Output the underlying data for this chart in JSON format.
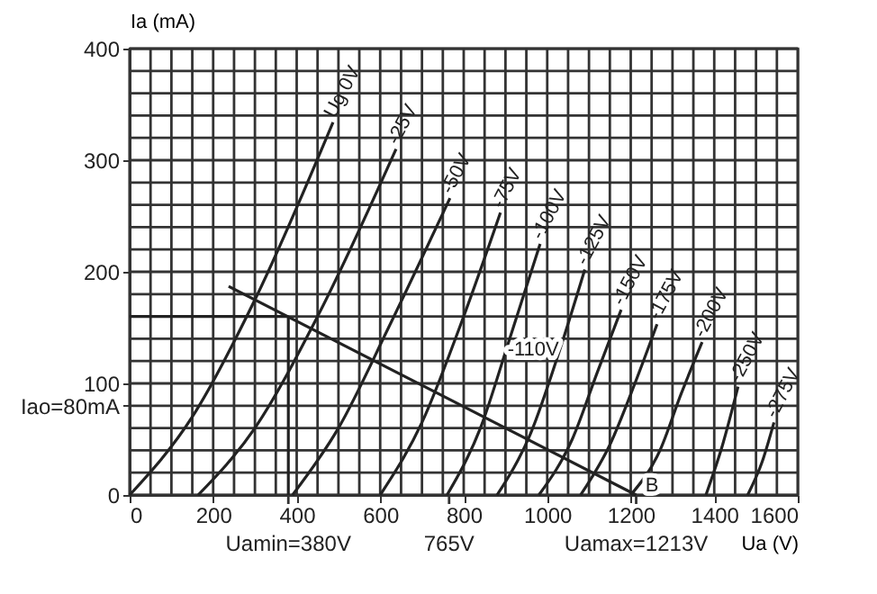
{
  "chart_data": {
    "type": "line",
    "xlabel": "Ua (V)",
    "ylabel": "Ia (mA)",
    "xlim": [
      0,
      1600
    ],
    "ylim": [
      0,
      400
    ],
    "xticks": [
      0,
      {
        "value": 50,
        "label": null
      },
      200,
      {
        "value": 100,
        "label": null
      },
      {
        "value": 150,
        "label": null
      },
      {
        "value": 250,
        "label": null
      },
      {
        "value": 300,
        "label": null
      },
      {
        "value": 350,
        "label": null
      },
      400,
      {
        "value": 450,
        "label": null
      },
      {
        "value": 500,
        "label": null
      },
      {
        "value": 550,
        "label": null
      },
      600,
      {
        "value": 650,
        "label": null
      },
      {
        "value": 700,
        "label": null
      },
      {
        "value": 750,
        "label": null
      },
      800,
      {
        "value": 850,
        "label": null
      },
      {
        "value": 900,
        "label": null
      },
      {
        "value": 950,
        "label": null
      },
      1000,
      {
        "value": 1050,
        "label": null
      },
      {
        "value": 1100,
        "label": null
      },
      {
        "value": 1150,
        "label": null
      },
      1200,
      {
        "value": 1250,
        "label": null
      },
      {
        "value": 1300,
        "label": null
      },
      {
        "value": 1350,
        "label": null
      },
      1400,
      {
        "value": 1450,
        "label": null
      },
      {
        "value": 1500,
        "label": null
      },
      {
        "value": 1550,
        "label": null
      },
      1600
    ],
    "yticks": [
      0,
      {
        "value": 20,
        "label": null
      },
      {
        "value": 40,
        "label": null
      },
      {
        "value": 60,
        "label": null
      },
      {
        "value": 80,
        "label": "Iao=80mA"
      },
      100,
      {
        "value": 120,
        "label": null
      },
      {
        "value": 140,
        "label": null
      },
      {
        "value": 160,
        "label": null
      },
      {
        "value": 180,
        "label": null
      },
      200,
      {
        "value": 220,
        "label": null
      },
      {
        "value": 240,
        "label": null
      },
      {
        "value": 260,
        "label": null
      },
      {
        "value": 280,
        "label": null
      },
      300,
      {
        "value": 320,
        "label": null
      },
      {
        "value": 340,
        "label": null
      },
      {
        "value": 360,
        "label": null
      },
      {
        "value": 380,
        "label": null
      },
      400
    ],
    "grid": true,
    "legend": false,
    "line_style": "solid",
    "marker": "none",
    "series": [
      {
        "name": "Ug 0V",
        "color": "#222222",
        "x": [
          0,
          150,
          300,
          487
        ],
        "values": [
          0,
          70,
          175,
          334
        ]
      },
      {
        "name": "-25V",
        "color": "#222222",
        "x": [
          164,
          300,
          450,
          638
        ],
        "values": [
          0,
          60,
          160,
          310
        ]
      },
      {
        "name": "-50V",
        "color": "#222222",
        "x": [
          390,
          500,
          620,
          767
        ],
        "values": [
          0,
          60,
          150,
          266
        ]
      },
      {
        "name": "-75V",
        "color": "#222222",
        "x": [
          600,
          700,
          790,
          888
        ],
        "values": [
          0,
          65,
          150,
          253
        ]
      },
      {
        "name": "-100V",
        "color": "#222222",
        "x": [
          760,
          840,
          910,
          983
        ],
        "values": [
          0,
          60,
          140,
          225
        ]
      },
      {
        "name": "-125V",
        "color": "#222222",
        "x": [
          880,
          960,
          1030,
          1090
        ],
        "values": [
          0,
          55,
          130,
          202
        ]
      },
      {
        "name": "-150V",
        "color": "#222222",
        "x": [
          980,
          1060,
          1120,
          1177
        ],
        "values": [
          0,
          50,
          110,
          166
        ]
      },
      {
        "name": "-175V",
        "color": "#222222",
        "x": [
          1080,
          1150,
          1210,
          1263
        ],
        "values": [
          0,
          45,
          100,
          153
        ]
      },
      {
        "name": "-200V",
        "color": "#222222",
        "x": [
          1200,
          1270,
          1320,
          1371
        ],
        "values": [
          0,
          40,
          90,
          137
        ]
      },
      {
        "name": "-250V",
        "color": "#222222",
        "x": [
          1380,
          1420,
          1457
        ],
        "values": [
          0,
          45,
          97
        ]
      },
      {
        "name": "-275V",
        "color": "#222222",
        "x": [
          1480,
          1515,
          1543
        ],
        "values": [
          0,
          30,
          65
        ]
      },
      {
        "color": "#222222",
        "x": [
          237,
          1213
        ],
        "values": [
          187,
          0
        ]
      },
      {
        "color": "#222222",
        "x": [
          0,
          380
        ],
        "values": [
          160,
          160
        ]
      },
      {
        "color": "#222222",
        "x": [
          380,
          380
        ],
        "values": [
          0,
          160
        ]
      }
    ],
    "annotations": [
      {
        "text": "B",
        "x": 1235,
        "y": 8
      },
      {
        "text": "Uamin=380V",
        "x": 380,
        "y": 0
      },
      {
        "text": "765V",
        "x": 765,
        "y": 0
      },
      {
        "text": "Uamax=1213V",
        "x": 1213,
        "y": 0
      },
      {
        "text": "-110V",
        "x": 905,
        "y": 130
      }
    ]
  }
}
